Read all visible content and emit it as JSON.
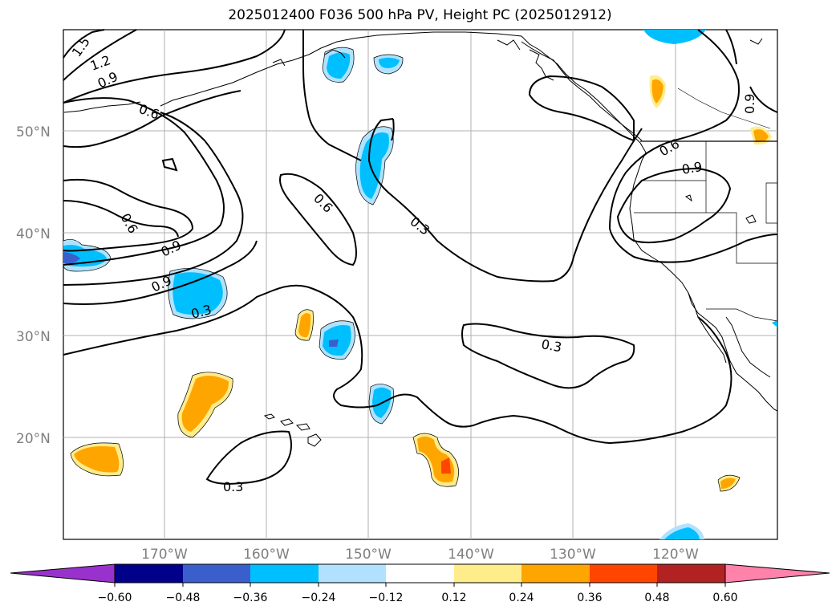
{
  "title": "2025012400 F036 500 hPa PV, Height PC (2025012912)",
  "lat_labels": [
    "50°N",
    "40°N",
    "30°N",
    "20°N"
  ],
  "lon_labels": [
    "170°W",
    "160°W",
    "150°W",
    "140°W",
    "130°W",
    "120°W"
  ],
  "contour_labels": [
    "1.5",
    "1.2",
    "0.9",
    "0.6",
    "0.6",
    "0.6",
    "0.9",
    "0.9",
    "0.3",
    "0.3",
    "0.3",
    "0.3",
    "0.6",
    "0.9",
    "0.9"
  ],
  "colorbar": {
    "ticks": [
      "−0.60",
      "−0.48",
      "−0.36",
      "−0.24",
      "−0.12",
      "0.12",
      "0.24",
      "0.36",
      "0.48",
      "0.60"
    ],
    "colors": [
      "#9932cc",
      "#00008b",
      "#3a5fcd",
      "#00bfff",
      "#b0e2ff",
      "#ffffff",
      "#ffec8b",
      "#ffa500",
      "#ff4500",
      "#b22222",
      "#ff82ab"
    ]
  },
  "colors": {
    "grid": "#b0b0b0",
    "label_gray": "#7f7f7f"
  }
}
